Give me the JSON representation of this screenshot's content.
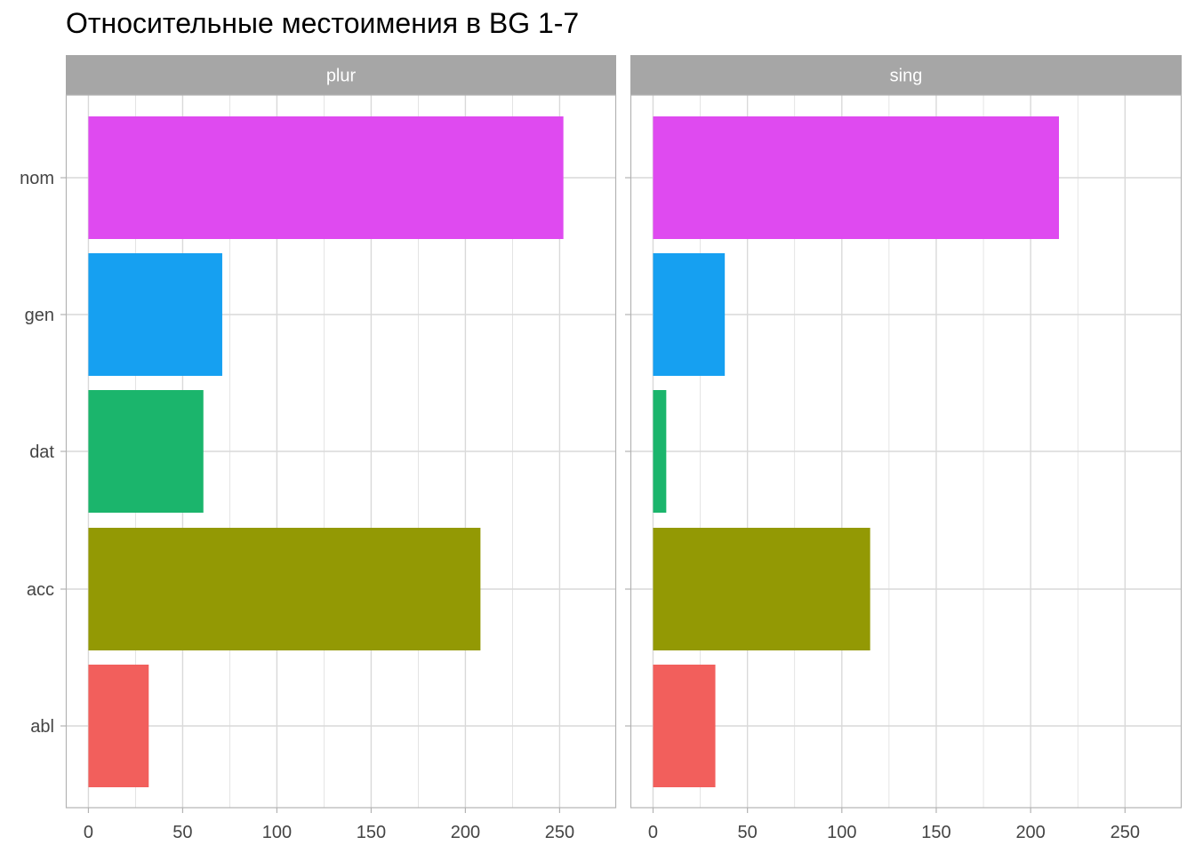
{
  "chart_data": {
    "type": "bar",
    "orientation": "horizontal",
    "title": "Относительные местоимения в BG 1-7",
    "categories": [
      "nom",
      "gen",
      "dat",
      "acc",
      "abl"
    ],
    "category_colors": {
      "nom": "#DF4AF0",
      "gen": "#16A0F1",
      "dat": "#1BB56C",
      "acc": "#939904",
      "abl": "#F25F5C"
    },
    "xlim": [
      -12,
      280
    ],
    "x_ticks": [
      0,
      50,
      100,
      150,
      200,
      250
    ],
    "x_tick_labels": [
      "0",
      "50",
      "100",
      "150",
      "200",
      "250"
    ],
    "grid": true,
    "legend": "none",
    "panels": [
      {
        "name": "plur",
        "values": {
          "nom": 252,
          "gen": 71,
          "dat": 61,
          "acc": 208,
          "abl": 32
        }
      },
      {
        "name": "sing",
        "values": {
          "nom": 215,
          "gen": 38,
          "dat": 7,
          "acc": 115,
          "abl": 33
        }
      }
    ],
    "strip_color": "#A6A6A6",
    "grid_color": "#D9D9D9",
    "border_color": "#B3B3B3"
  }
}
